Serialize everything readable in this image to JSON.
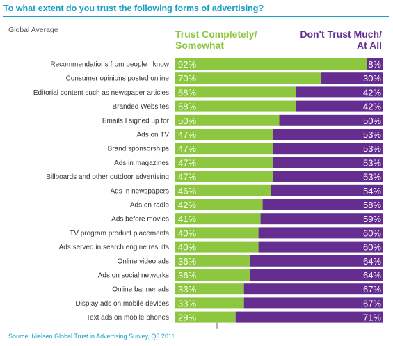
{
  "title": "To what extent do you trust the following forms of advertising?",
  "subtitle": "Global Average",
  "legend": {
    "trust_label": "Trust Completely/ Somewhat",
    "trust_line1": "Trust Completely/",
    "trust_line2": "Somewhat",
    "distrust_label": "Don't Trust Much/ At All",
    "distrust_line1": "Don't Trust Much/",
    "distrust_line2": "At All"
  },
  "source": "Source: Nielsen Global Trust in Advertising Survey, Q3 2011",
  "colors": {
    "title": "#19a0c4",
    "trust": "#8dc63f",
    "distrust": "#662d91",
    "label_text": "#333333"
  },
  "chart_data": {
    "type": "bar",
    "orientation": "horizontal",
    "stacked": true,
    "title": "To what extent do you trust the following forms of advertising?",
    "subtitle": "Global Average",
    "categories": [
      "Recommendations from people I know",
      "Consumer opinions posted online",
      "Editorial content such as newspaper articles",
      "Branded Websites",
      "Emails I signed up for",
      "Ads on TV",
      "Brand sponsorships",
      "Ads in magazines",
      "Billboards and other outdoor advertising",
      "Ads in newspapers",
      "Ads on radio",
      "Ads before movies",
      "TV program product placements",
      "Ads served in search engine results",
      "Online video ads",
      "Ads on social networks",
      "Online banner ads",
      "Display ads on mobile devices",
      "Text ads on mobile phones"
    ],
    "series": [
      {
        "name": "Trust Completely/ Somewhat",
        "color": "#8dc63f",
        "values": [
          92,
          70,
          58,
          58,
          50,
          47,
          47,
          47,
          47,
          46,
          42,
          41,
          40,
          40,
          36,
          36,
          33,
          33,
          29
        ]
      },
      {
        "name": "Don't Trust Much/ At All",
        "color": "#662d91",
        "values": [
          8,
          30,
          42,
          42,
          50,
          53,
          53,
          53,
          53,
          54,
          58,
          59,
          60,
          60,
          64,
          64,
          67,
          67,
          71
        ]
      }
    ],
    "value_suffix": "%",
    "xlim": [
      0,
      100
    ],
    "legend_position": "top"
  }
}
